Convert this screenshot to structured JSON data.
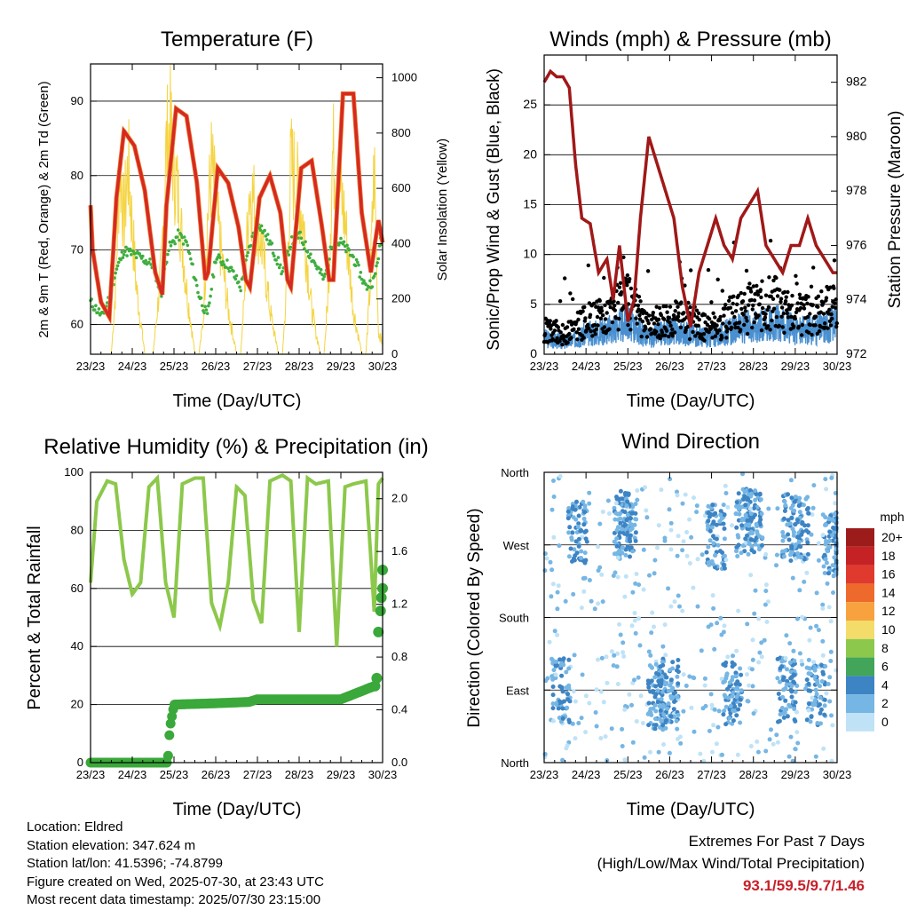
{
  "panels": {
    "temperature": {
      "title": "Temperature (F)",
      "xlabel": "Time (Day/UTC)",
      "ylabel_left": "2m & 9m T (Red, Orange) & 2m Td (Green)",
      "ylabel_right": "Solar Insolation (Yellow)"
    },
    "winds": {
      "title": "Winds (mph) & Pressure (mb)",
      "xlabel": "Time (Day/UTC)",
      "ylabel_left": "Sonic/Prop Wind & Gust (Blue, Black)",
      "ylabel_right": "Station Pressure (Maroon)"
    },
    "humidity": {
      "title": "Relative Humidity (%) & Precipitation (in)",
      "xlabel": "Time (Day/UTC)",
      "ylabel_left": "Percent & Total Rainfall"
    },
    "direction": {
      "title": "Wind Direction",
      "xlabel": "Time (Day/UTC)",
      "ylabel_left": "Direction (Colored By Speed)"
    }
  },
  "footer": {
    "location": "Location: Eldred",
    "elevation": "Station elevation: 347.624 m",
    "latlon": "Station lat/lon: 41.5396; -74.8799",
    "created": "Figure created on Wed, 2025-07-30, at 23:43 UTC",
    "recent": "Most recent data timestamp: 2025/07/30 23:15:00",
    "extremes_title": "Extremes For Past 7 Days",
    "extremes_sub": "(High/Low/Max Wind/Total Precipitation)",
    "extremes_values": "93.1/59.5/9.7/1.46"
  },
  "chart_data": [
    {
      "type": "line",
      "title": "Temperature (F)",
      "xlabel": "Time (Day/UTC)",
      "ylabel": "2m & 9m T (Red, Orange) & 2m Td (Green)",
      "y2label": "Solar Insolation (Yellow)",
      "x_ticks": [
        "23/23",
        "24/23",
        "25/23",
        "26/23",
        "27/23",
        "28/23",
        "29/23",
        "30/23"
      ],
      "ylim": [
        56,
        95
      ],
      "y_ticks": [
        60,
        70,
        80,
        90
      ],
      "y2lim": [
        0,
        1050
      ],
      "y2_ticks": [
        0,
        200,
        400,
        600,
        800,
        1000
      ],
      "grid": true,
      "colors": {
        "temp_2m": "#d42a22",
        "temp_9m": "#f07a2a",
        "dewpoint": "#3fae3f",
        "solar": "#f5d442"
      },
      "series": [
        {
          "name": "2m T",
          "x": [
            0,
            0.05,
            0.25,
            0.45,
            0.62,
            0.8,
            1.05,
            1.3,
            1.55,
            1.72,
            1.82,
            2.05,
            2.3,
            2.55,
            2.75,
            2.82,
            3.05,
            3.3,
            3.55,
            3.72,
            3.82,
            4.05,
            4.3,
            4.55,
            4.72,
            4.8,
            5.05,
            5.3,
            5.55,
            5.72,
            5.82,
            6.05,
            6.3,
            6.5,
            6.72,
            6.82,
            6.9,
            7.0
          ],
          "y": [
            76,
            70,
            63,
            61,
            77,
            86,
            84,
            78,
            67,
            64,
            76,
            89,
            88,
            79,
            66,
            67,
            81,
            79,
            73,
            66,
            65,
            77,
            80,
            75,
            66,
            65,
            81,
            82,
            73,
            66,
            66,
            91,
            91,
            75,
            67,
            71,
            74,
            71
          ]
        },
        {
          "name": "2m Td",
          "x": [
            0,
            0.3,
            0.6,
            0.8,
            1.2,
            1.5,
            1.7,
            1.85,
            2.1,
            2.3,
            2.6,
            2.8,
            3.0,
            3.3,
            3.6,
            3.8,
            4.0,
            4.3,
            4.6,
            4.8,
            5.0,
            5.3,
            5.6,
            5.8,
            6.0,
            6.3,
            6.6,
            6.8,
            6.95,
            7.0
          ],
          "y": [
            63,
            61,
            67,
            70,
            69,
            68,
            64,
            70,
            72,
            71,
            64,
            61,
            69,
            68,
            65,
            70,
            74,
            71,
            67,
            71,
            72,
            69,
            66,
            71,
            71,
            69,
            65,
            66,
            71,
            71
          ]
        },
        {
          "name": "Solar",
          "x": [
            0.3,
            0.5,
            0.6,
            0.7,
            0.8,
            0.9,
            1.1,
            1.3,
            1.5,
            1.6,
            1.7,
            1.8,
            1.9,
            2.1,
            2.3,
            2.5,
            2.6,
            2.7,
            2.8,
            2.9,
            3.1,
            3.3,
            3.5,
            3.6,
            3.7,
            3.8,
            3.9,
            4.1,
            4.3,
            4.5,
            4.6,
            4.7,
            4.8,
            4.9,
            5.1,
            5.3,
            5.5,
            5.6,
            5.7,
            5.8,
            5.9,
            6.1,
            6.3,
            6.5,
            6.6,
            6.7,
            6.8,
            6.9,
            7.0
          ],
          "y": [
            0,
            0,
            300,
            880,
            600,
            860,
            300,
            0,
            0,
            200,
            400,
            900,
            1020,
            700,
            300,
            0,
            0,
            150,
            600,
            850,
            500,
            200,
            0,
            0,
            300,
            750,
            700,
            500,
            200,
            0,
            0,
            300,
            850,
            800,
            600,
            200,
            0,
            0,
            300,
            900,
            850,
            600,
            200,
            0,
            0,
            300,
            850,
            100,
            50
          ]
        }
      ]
    },
    {
      "type": "line",
      "title": "Winds (mph) & Pressure (mb)",
      "xlabel": "Time (Day/UTC)",
      "ylabel": "Sonic/Prop Wind & Gust (Blue, Black)",
      "y2label": "Station Pressure (Maroon)",
      "x_ticks": [
        "23/23",
        "24/23",
        "25/23",
        "26/23",
        "27/23",
        "28/23",
        "29/23",
        "30/23"
      ],
      "ylim": [
        0,
        30
      ],
      "y_ticks": [
        0,
        5,
        10,
        15,
        20,
        25
      ],
      "y2lim": [
        972,
        983
      ],
      "y2_ticks": [
        972,
        974,
        976,
        978,
        980,
        982
      ],
      "grid": true,
      "colors": {
        "wind": "#4a90d0",
        "gust": "#000000",
        "pressure": "#a01818"
      },
      "series": [
        {
          "name": "Station Pressure",
          "x": [
            0,
            0.15,
            0.3,
            0.45,
            0.6,
            0.75,
            0.9,
            1.1,
            1.3,
            1.5,
            1.65,
            1.8,
            2.0,
            2.15,
            2.3,
            2.5,
            2.7,
            2.9,
            3.1,
            3.3,
            3.5,
            3.7,
            3.9,
            4.1,
            4.3,
            4.5,
            4.7,
            4.9,
            5.1,
            5.3,
            5.5,
            5.7,
            5.9,
            6.1,
            6.3,
            6.5,
            6.7,
            6.9,
            7.0
          ],
          "y": [
            982,
            982.4,
            982.2,
            982.2,
            981.8,
            979,
            977,
            976.8,
            975,
            975.5,
            974,
            976,
            973.2,
            974,
            977,
            980,
            979,
            978,
            977,
            974.5,
            973,
            975,
            976,
            977,
            976,
            975.5,
            977,
            977.5,
            978,
            976,
            975.5,
            975,
            976,
            976,
            977,
            976,
            975.5,
            975,
            975
          ]
        },
        {
          "name": "Wind",
          "x": [
            0,
            0.5,
            1,
            1.5,
            2,
            2.5,
            3,
            3.5,
            4,
            4.5,
            5,
            5.5,
            6,
            6.5,
            7
          ],
          "y": [
            2,
            1.5,
            2.5,
            3,
            4,
            2,
            3,
            2.5,
            2,
            3,
            3.5,
            4,
            3,
            3,
            4
          ]
        }
      ]
    },
    {
      "type": "line",
      "title": "Relative Humidity (%) & Precipitation (in)",
      "xlabel": "Time (Day/UTC)",
      "ylabel": "Percent & Total Rainfall",
      "x_ticks": [
        "23/23",
        "24/23",
        "25/23",
        "26/23",
        "27/23",
        "28/23",
        "29/23",
        "30/23"
      ],
      "ylim": [
        0,
        100
      ],
      "y_ticks": [
        0,
        20,
        40,
        60,
        80,
        100
      ],
      "y2lim": [
        0,
        2.2
      ],
      "y2_ticks": [
        0.0,
        0.4,
        0.8,
        1.2,
        1.6,
        2.0
      ],
      "grid": true,
      "colors": {
        "rh": "#8cc84b",
        "precip": "#3aa83a"
      },
      "series": [
        {
          "name": "RH",
          "x": [
            0,
            0.15,
            0.4,
            0.6,
            0.8,
            1.0,
            1.2,
            1.4,
            1.6,
            1.8,
            2.0,
            2.2,
            2.5,
            2.7,
            2.9,
            3.1,
            3.3,
            3.5,
            3.7,
            3.9,
            4.1,
            4.3,
            4.6,
            4.8,
            5.0,
            5.2,
            5.4,
            5.7,
            5.9,
            6.1,
            6.3,
            6.6,
            6.8,
            6.9,
            7.0
          ],
          "y": [
            62,
            90,
            97,
            96,
            70,
            58,
            62,
            95,
            98,
            62,
            50,
            96,
            98,
            98,
            55,
            47,
            62,
            95,
            92,
            56,
            48,
            97,
            99,
            97,
            45,
            98,
            96,
            97,
            40,
            95,
            96,
            97,
            52,
            96,
            98
          ]
        },
        {
          "name": "Precipitation",
          "x": [
            0,
            1.0,
            1.85,
            1.9,
            2.0,
            3.0,
            3.8,
            4.0,
            5.0,
            6.0,
            6.8,
            6.85,
            6.9,
            6.95,
            7.0
          ],
          "y": [
            0,
            0,
            0,
            0.26,
            0.44,
            0.45,
            0.46,
            0.48,
            0.48,
            0.48,
            0.58,
            0.64,
            0.99,
            1.15,
            1.46
          ]
        }
      ]
    },
    {
      "type": "scatter",
      "title": "Wind Direction",
      "xlabel": "Time (Day/UTC)",
      "ylabel": "Direction (Colored By Speed)",
      "x_ticks": [
        "23/23",
        "24/23",
        "25/23",
        "26/23",
        "27/23",
        "28/23",
        "29/23",
        "30/23"
      ],
      "y_ticks": [
        "North",
        "West",
        "South",
        "East",
        "North"
      ],
      "ylim": [
        0,
        360
      ],
      "grid": true,
      "legend": {
        "title": "mph",
        "placement": "right",
        "labels": [
          "20+",
          "18",
          "16",
          "14",
          "12",
          "10",
          "8",
          "6",
          "4",
          "2",
          "0"
        ],
        "colors": [
          "#9c1c1c",
          "#c52226",
          "#e03a2e",
          "#ee6a2c",
          "#f7a23f",
          "#f3dc6a",
          "#8cc84b",
          "#43a55a",
          "#3d84c4",
          "#76b6e4",
          "#bfe2f6"
        ]
      },
      "series": [
        {
          "name": "Direction clusters",
          "x": [
            0.8,
            1.9,
            2.0,
            3.0,
            4.1,
            4.8,
            5.0,
            5.9,
            6.1,
            6.9,
            0.4,
            2.7,
            4.5,
            5.8,
            6.5
          ],
          "y": [
            285,
            290,
            300,
            90,
            280,
            295,
            300,
            295,
            290,
            270,
            90,
            80,
            85,
            90,
            85
          ]
        }
      ]
    }
  ]
}
